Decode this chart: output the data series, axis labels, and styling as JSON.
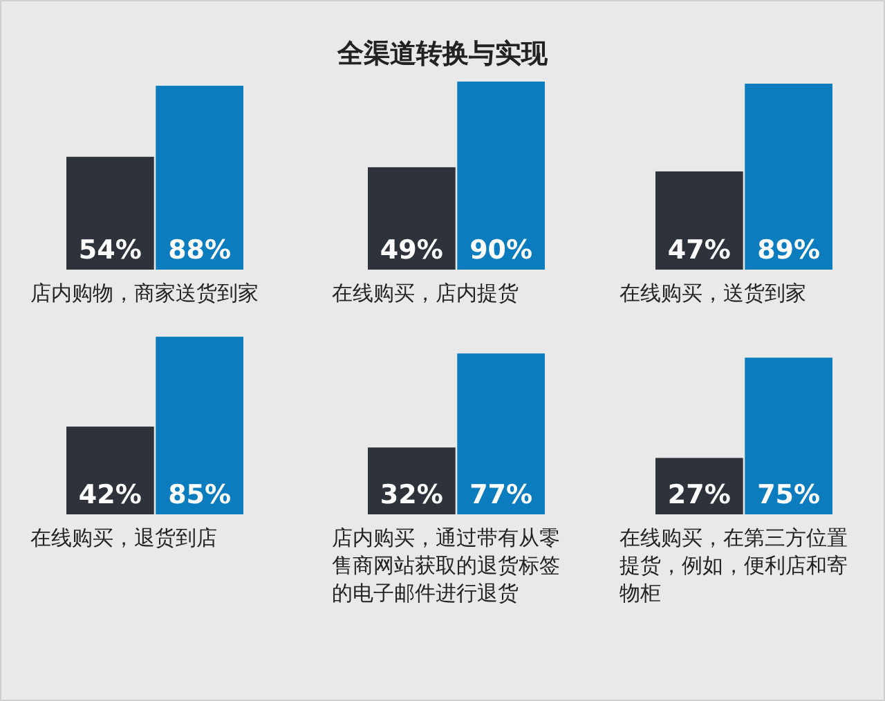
{
  "chart_data": [
    {
      "type": "bar",
      "xlabel": "店内购物，商家送货到家",
      "categories": [
        null,
        null
      ],
      "values": [
        54,
        88
      ],
      "colors": [
        "#2e333b",
        "#0b7dbf"
      ],
      "value_labels": [
        "54%",
        "88%"
      ]
    },
    {
      "type": "bar",
      "title": "全渠道转换与实现",
      "xlabel": "在线购买，店内提货",
      "categories": [
        null,
        null
      ],
      "values": [
        49,
        90
      ],
      "colors": [
        "#2e333b",
        "#0b7dbf"
      ],
      "value_labels": [
        "49%",
        "90%"
      ]
    },
    {
      "type": "bar",
      "xlabel": "在线购买，送货到家",
      "categories": [
        null,
        null
      ],
      "values": [
        47,
        89
      ],
      "colors": [
        "#2e333b",
        "#0b7dbf"
      ],
      "value_labels": [
        "47%",
        "89%"
      ]
    },
    {
      "type": "bar",
      "xlabel": "在线购买，退货到店",
      "categories": [
        null,
        null
      ],
      "values": [
        42,
        85
      ],
      "colors": [
        "#2e333b",
        "#0b7dbf"
      ],
      "value_labels": [
        "42%",
        "85%"
      ]
    },
    {
      "type": "bar",
      "xlabel": "店内购买，通过带有从零售商网站获取的退货标签的电子邮件进行退货",
      "categories": [
        null,
        null
      ],
      "values": [
        32,
        77
      ],
      "colors": [
        "#2e333b",
        "#0b7dbf"
      ],
      "value_labels": [
        "32%",
        "77%"
      ]
    },
    {
      "type": "bar",
      "xlabel": "在线购买，在第三方位置提货，例如，便利店和寄物柜",
      "categories": [
        null,
        null
      ],
      "values": [
        27,
        75
      ],
      "colors": [
        "#2e333b",
        "#0b7dbf"
      ],
      "value_labels": [
        "27%",
        "75%"
      ]
    }
  ]
}
